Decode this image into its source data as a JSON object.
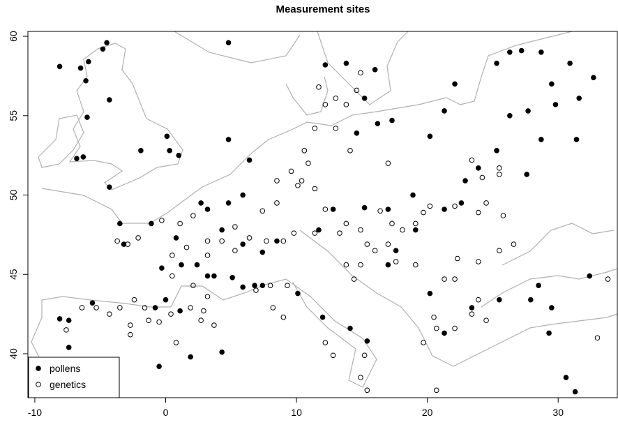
{
  "chart_data": {
    "type": "scatter",
    "title": "Measurement sites",
    "xlim": [
      -10.53,
      34.52
    ],
    "ylim": [
      37.23,
      60.31
    ],
    "xticks": [
      -10,
      0,
      10,
      20,
      30
    ],
    "yticks": [
      40,
      45,
      50,
      55,
      60
    ],
    "legend": "bottomleft",
    "series": [
      {
        "name": "pollens",
        "color": "#000000",
        "marker": "filled",
        "x": [
          -8.1,
          -6.5,
          -5.9,
          -4.5,
          -4.8,
          -6.1,
          -4.3,
          -6.0,
          -6.8,
          -6.3,
          -4.3,
          -1.9,
          0.1,
          0.3,
          1.0,
          4.8,
          12.2,
          13.8,
          16.0,
          15.2,
          14.6,
          16.2,
          17.3,
          20.2,
          21.3,
          22.1,
          25.3,
          26.3,
          27.2,
          28.7,
          29.5,
          30.9,
          32.7,
          31.6,
          29.8,
          26.3,
          27.7,
          28.7,
          31.4,
          23.9,
          25.3,
          27.6,
          22.9,
          22.6,
          21.3,
          18.9,
          17.0,
          15.2,
          12.8,
          11.7,
          8.5,
          7.4,
          5.9,
          4.3,
          3.2,
          0.8,
          -0.3,
          1.2,
          2.4,
          3.2,
          3.7,
          5.1,
          5.9,
          6.8,
          7.4,
          -0.8,
          0.0,
          1.1,
          -5.6,
          -7.4,
          -7.4,
          -8.1,
          -0.5,
          1.9,
          4.3,
          10.1,
          12.0,
          14.1,
          15.4,
          20.2,
          21.3,
          23.4,
          25.5,
          27.9,
          28.5,
          29.5,
          29.3,
          30.6,
          31.3,
          32.4,
          17.6,
          19.1,
          17.0,
          2.7,
          4.8,
          5.9,
          6.4,
          4.8,
          -1.1,
          -3.5,
          -3.2
        ],
        "values": [
          58.1,
          58.0,
          58.4,
          59.6,
          59.2,
          57.2,
          56.0,
          54.9,
          52.3,
          52.4,
          50.5,
          52.8,
          53.7,
          52.8,
          52.5,
          59.6,
          58.2,
          58.3,
          57.9,
          56.1,
          53.9,
          54.5,
          54.7,
          53.7,
          55.3,
          57.0,
          58.3,
          59.0,
          59.1,
          59.0,
          57.0,
          58.3,
          57.4,
          56.1,
          55.7,
          55.0,
          55.3,
          53.5,
          53.5,
          51.7,
          52.8,
          51.3,
          50.9,
          49.5,
          49.1,
          50.0,
          49.1,
          49.2,
          49.1,
          47.8,
          47.1,
          46.4,
          46.9,
          47.8,
          49.1,
          47.3,
          45.4,
          45.6,
          45.6,
          44.9,
          44.9,
          44.8,
          44.2,
          44.3,
          44.3,
          42.9,
          43.4,
          42.7,
          43.2,
          42.1,
          40.4,
          42.2,
          39.2,
          39.8,
          40.1,
          43.8,
          42.3,
          41.6,
          40.8,
          43.8,
          41.3,
          42.9,
          43.4,
          43.4,
          44.3,
          42.9,
          41.3,
          38.5,
          37.6,
          44.9,
          46.5,
          47.8,
          45.6,
          49.5,
          49.5,
          50.0,
          52.2,
          53.5,
          48.2,
          48.2,
          46.9
        ]
      },
      {
        "name": "genetics",
        "color": "#000000",
        "marker": "open",
        "x": [
          -2.9,
          -3.7,
          -2.1,
          -0.3,
          1.1,
          2.1,
          3.2,
          5.3,
          7.4,
          8.5,
          10.1,
          11.4,
          12.2,
          13.8,
          14.9,
          13.3,
          11.4,
          9.8,
          9.0,
          7.7,
          6.4,
          5.3,
          4.3,
          3.2,
          1.6,
          0.5,
          0.5,
          2.1,
          3.2,
          2.9,
          1.9,
          0.4,
          -0.5,
          -1.6,
          -2.4,
          -3.5,
          -4.3,
          -5.3,
          -6.4,
          -7.6,
          -2.7,
          -2.7,
          -1.3,
          0.8,
          2.7,
          3.7,
          6.9,
          8.0,
          9.3,
          10.6,
          9.6,
          10.9,
          8.5,
          10.4,
          11.4,
          13.0,
          14.1,
          11.7,
          12.2,
          13.0,
          13.8,
          14.9,
          14.6,
          16.4,
          17.3,
          18.1,
          19.1,
          19.7,
          20.2,
          22.1,
          23.9,
          25.8,
          24.5,
          25.5,
          23.4,
          15.4,
          16.0,
          14.9,
          13.8,
          14.4,
          17.0,
          17.6,
          19.1,
          22.3,
          23.9,
          25.5,
          26.6,
          21.3,
          22.1,
          20.5,
          20.7,
          23.4,
          23.9,
          24.5,
          22.1,
          19.7,
          12.2,
          12.8,
          14.9,
          15.4,
          15.2,
          9.0,
          8.2,
          17.0,
          25.5,
          24.2,
          33.0,
          33.8,
          20.7
        ],
        "values": [
          46.9,
          47.1,
          47.3,
          48.4,
          48.2,
          48.7,
          47.1,
          48.0,
          49.0,
          49.5,
          50.6,
          50.4,
          49.1,
          48.2,
          47.8,
          47.6,
          47.6,
          47.6,
          47.1,
          47.1,
          47.3,
          46.5,
          47.1,
          46.2,
          46.7,
          46.2,
          44.9,
          44.3,
          43.6,
          42.7,
          42.9,
          42.5,
          42.0,
          42.9,
          43.4,
          42.9,
          42.5,
          42.9,
          42.9,
          41.5,
          41.2,
          41.8,
          42.1,
          40.7,
          42.1,
          41.8,
          44.0,
          44.3,
          44.3,
          52.8,
          51.5,
          52.0,
          50.9,
          50.9,
          54.2,
          54.2,
          52.8,
          56.8,
          55.7,
          56.1,
          55.7,
          57.7,
          56.6,
          49.0,
          48.2,
          47.8,
          48.2,
          48.9,
          49.3,
          49.3,
          48.9,
          48.7,
          49.5,
          51.7,
          52.2,
          46.9,
          46.5,
          45.6,
          45.6,
          44.7,
          46.9,
          45.8,
          45.6,
          46.0,
          45.8,
          46.5,
          46.9,
          44.7,
          44.7,
          42.3,
          41.6,
          42.5,
          43.4,
          42.1,
          41.6,
          40.7,
          40.7,
          39.9,
          38.5,
          37.7,
          39.9,
          42.3,
          42.9,
          52.0,
          51.3,
          51.1,
          41.0,
          44.7,
          37.7
        ]
      }
    ]
  }
}
